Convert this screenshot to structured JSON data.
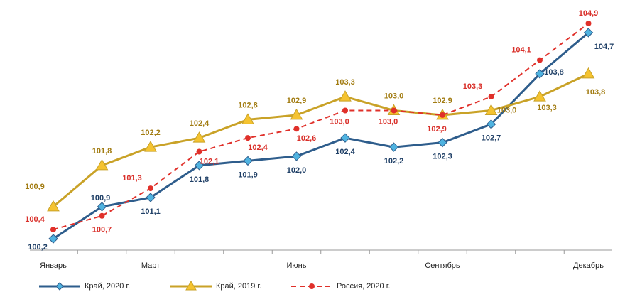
{
  "chart_data": {
    "type": "line",
    "categories": [
      "Январь",
      null,
      "Март",
      null,
      null,
      "Июнь",
      null,
      null,
      "Сентябрь",
      null,
      null,
      "Декабрь"
    ],
    "series": [
      {
        "name": "Край, 2020 г.",
        "color": "#2e5d8c",
        "marker_color": "#4fb3e0",
        "marker": "diamond",
        "label_color": "#1f3f66",
        "values": [
          100.2,
          100.9,
          101.1,
          101.8,
          101.9,
          102.0,
          102.4,
          102.2,
          102.3,
          102.7,
          103.8,
          104.7
        ],
        "value_labels": [
          "100,2",
          "100,9",
          "101,1",
          "101,8",
          "101,9",
          "102,0",
          "102,4",
          "102,2",
          "102,3",
          "102,7",
          "103,8",
          "104,7"
        ]
      },
      {
        "name": "Край, 2019 г.",
        "color": "#c9a227",
        "marker_color": "#f5c330",
        "marker": "triangle",
        "label_color": "#a27c12",
        "values": [
          100.9,
          101.8,
          102.2,
          102.4,
          102.8,
          102.9,
          103.3,
          103.0,
          102.9,
          103.0,
          103.3,
          103.8
        ],
        "value_labels": [
          "100,9",
          "101,8",
          "102,2",
          "102,4",
          "102,8",
          "102,9",
          "103,3",
          "103,0",
          "102,9",
          "103,0",
          "103,3",
          "103,8"
        ]
      },
      {
        "name": "Россия, 2020 г.",
        "color": "#e0302a",
        "marker_color": "#e0302a",
        "marker": "circle",
        "dashed": true,
        "label_color": "#d9302a",
        "values": [
          100.4,
          100.7,
          101.3,
          102.1,
          102.4,
          102.6,
          103.0,
          103.0,
          102.9,
          103.3,
          104.1,
          104.9
        ],
        "value_labels": [
          "100,4",
          "100,7",
          "101,3",
          "102,1",
          "102,4",
          "102,6",
          "103,0",
          "103,0",
          "102,9",
          "103,3",
          "104,1",
          "104,9"
        ]
      }
    ]
  }
}
